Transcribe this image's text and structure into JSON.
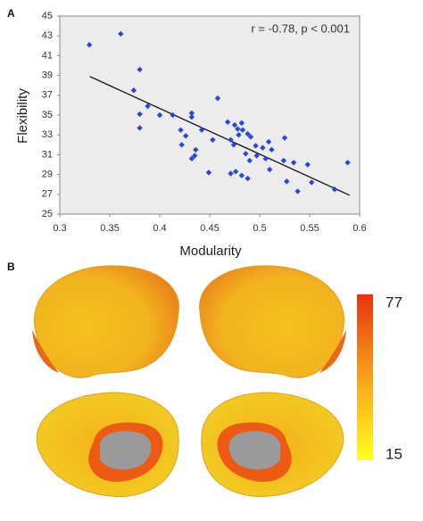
{
  "chart_data": {
    "type": "scatter",
    "x_label": "Modularity",
    "y_label": "Flexibility",
    "annotation": "r = -0.78, p < 0.001",
    "color": "#2b46d6",
    "x": [
      0.3296,
      0.361,
      0.38,
      0.374,
      0.388,
      0.38,
      0.38,
      0.4,
      0.413,
      0.432,
      0.432,
      0.421,
      0.426,
      0.422,
      0.436,
      0.435,
      0.432,
      0.449,
      0.442,
      0.453,
      0.458,
      0.468,
      0.475,
      0.482,
      0.478,
      0.483,
      0.479,
      0.471,
      0.474,
      0.488,
      0.491,
      0.496,
      0.486,
      0.49,
      0.497,
      0.503,
      0.509,
      0.512,
      0.506,
      0.51,
      0.471,
      0.476,
      0.482,
      0.488,
      0.525,
      0.524,
      0.534,
      0.527,
      0.538,
      0.548,
      0.552,
      0.575,
      0.588
    ],
    "values": [
      42.1,
      43.2,
      39.6,
      37.5,
      35.9,
      35.1,
      33.7,
      35.0,
      35.0,
      35.2,
      34.8,
      33.5,
      32.9,
      32.0,
      31.5,
      30.9,
      30.6,
      29.2,
      33.5,
      32.5,
      36.7,
      34.3,
      34.0,
      34.2,
      33.6,
      33.5,
      33.0,
      32.5,
      32.0,
      33.1,
      32.8,
      31.9,
      31.1,
      30.4,
      30.9,
      31.7,
      32.3,
      31.5,
      30.6,
      29.5,
      29.1,
      29.3,
      28.9,
      28.6,
      32.7,
      30.4,
      30.2,
      28.3,
      27.3,
      30.0,
      28.2,
      27.5,
      30.2
    ],
    "trendline": {
      "x": [
        0.33,
        0.59
      ],
      "y": [
        38.9,
        26.9
      ],
      "color": "#111111"
    },
    "xlim": [
      0.3,
      0.6
    ],
    "xticks": [
      0.3,
      0.35,
      0.4,
      0.45,
      0.5,
      0.55,
      0.6
    ],
    "ylim": [
      25,
      45
    ],
    "yticks": [
      25,
      27,
      29,
      31,
      33,
      35,
      37,
      39,
      41,
      43,
      45
    ],
    "grid": false
  },
  "figure": {
    "panel_a": "A",
    "panel_b": "B",
    "colorbar": {
      "max": 77,
      "min": 15,
      "colors": [
        "#e8340e",
        "#f7a21b",
        "#ffff1e"
      ]
    }
  }
}
